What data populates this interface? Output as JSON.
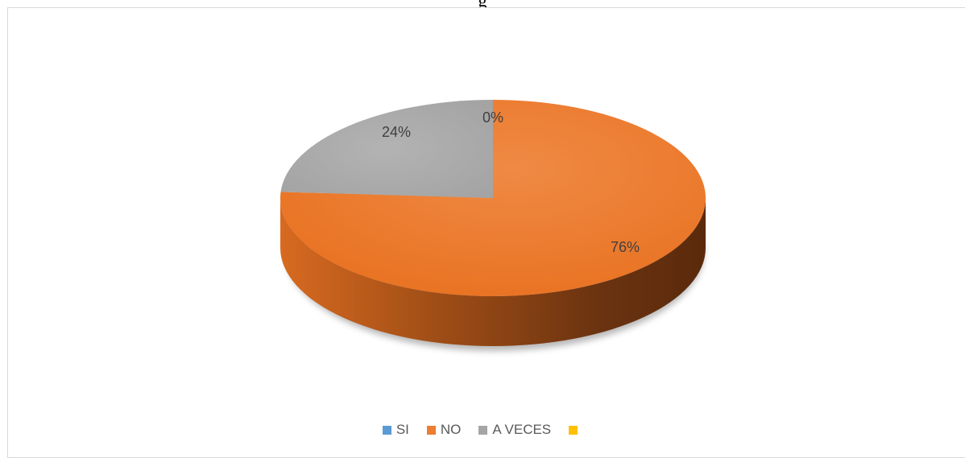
{
  "header_text": "g",
  "colors": {
    "SI": "#5B9BD5",
    "NO": "#ED7D31",
    "A VECES": "#A5A5A5",
    "blank": "#FFC000"
  },
  "chart_data": {
    "type": "pie",
    "three_d": true,
    "categories": [
      "SI",
      "NO",
      "A VECES",
      ""
    ],
    "values": [
      0,
      76,
      24,
      0
    ],
    "data_labels": [
      "0%",
      "76%",
      "24%",
      ""
    ],
    "legend": {
      "position": "bottom",
      "entries": [
        "SI",
        "NO",
        "A VECES",
        ""
      ]
    }
  }
}
